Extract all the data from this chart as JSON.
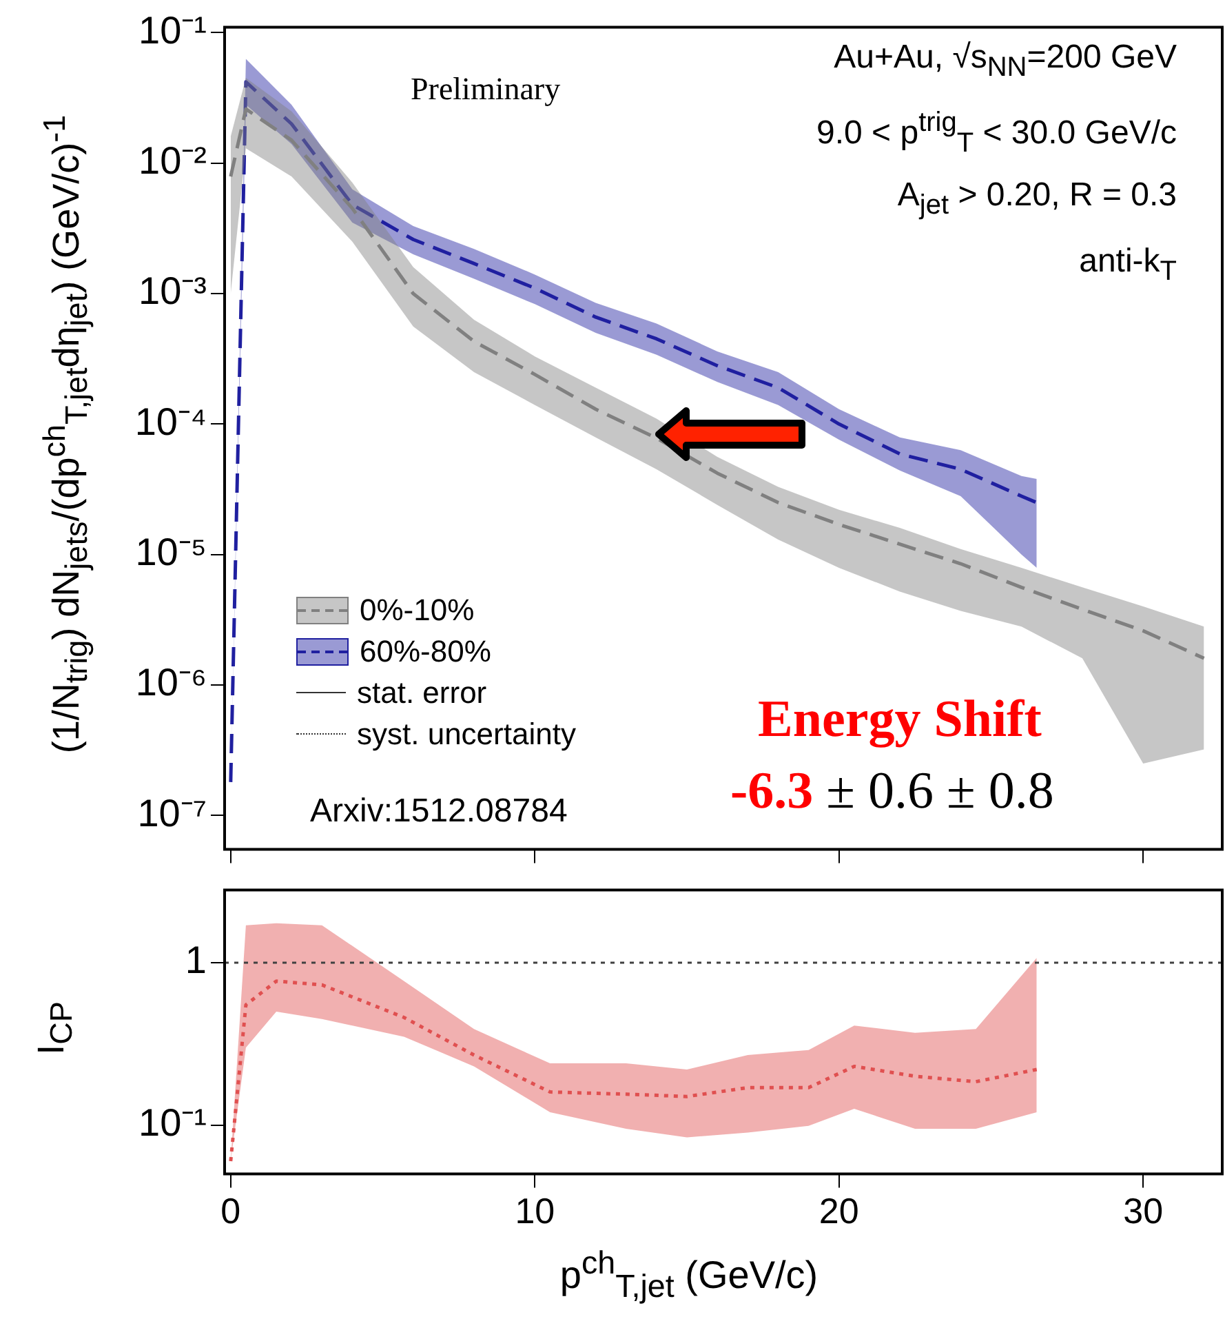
{
  "chart_data": [
    {
      "type": "line",
      "ylabel": "(1/N$_{trig}$) dN$_{jets}$/(dp$^{ch}$$_{T,jet}$dη$_{jet}$)  (GeV/c)$^{-1}$",
      "log": "y",
      "tick_labels": "y",
      "legend": "left",
      "xlim": [
        -0.2,
        32.6
      ],
      "xticks": [
        0,
        10,
        20,
        30
      ],
      "ylim": [
        5.5e-08,
        0.11
      ],
      "yticks": [
        {
          "value": 0.1,
          "label": "10⁻¹"
        },
        {
          "value": 0.01,
          "label": "10⁻²"
        },
        {
          "value": 0.001,
          "label": "10⁻³"
        },
        {
          "value": 0.0001,
          "label": "10⁻⁴"
        },
        {
          "value": 1e-05,
          "label": "10⁻⁵"
        },
        {
          "value": 1e-06,
          "label": "10⁻⁶"
        },
        {
          "value": 1e-07,
          "label": "10⁻⁷"
        }
      ],
      "series": [
        {
          "name": "0%-10%",
          "color": "#808080",
          "line_style": "dashed",
          "x": [
            0,
            0.5,
            2,
            4,
            6,
            8,
            10,
            12,
            14,
            16,
            18,
            20,
            22,
            24,
            26,
            28,
            30,
            32
          ],
          "values": [
            0.0079,
            0.026,
            0.015,
            0.0045,
            0.001,
            0.00043,
            0.00024,
            0.00013,
            7.8e-05,
            4.2e-05,
            2.5e-05,
            1.7e-05,
            1.2e-05,
            8.5e-06,
            5.6e-06,
            3.8e-06,
            2.6e-06,
            1.6e-06
          ],
          "upper": [
            0.016,
            0.045,
            0.025,
            0.0071,
            0.0016,
            0.00063,
            0.00033,
            0.00019,
            0.00011,
            5.6e-05,
            3.3e-05,
            2.2e-05,
            1.6e-05,
            1.1e-05,
            7.9e-06,
            5.6e-06,
            4e-06,
            2.8e-06
          ],
          "lower": [
            0.001,
            0.013,
            0.0079,
            0.0025,
            0.00056,
            0.00025,
            0.00014,
            7.9e-05,
            4.5e-05,
            2.4e-05,
            1.3e-05,
            7.9e-06,
            5.2e-06,
            3.7e-06,
            2.8e-06,
            1.6e-06,
            2.5e-07,
            3.2e-07
          ]
        },
        {
          "name": "60%-80%",
          "color": "#2020a0",
          "line_style": "dashed",
          "x": [
            0,
            0.5,
            2,
            4,
            6,
            8,
            10,
            12,
            14,
            16,
            18,
            20,
            22,
            24,
            26,
            26.5
          ],
          "values": [
            1.8e-07,
            0.042,
            0.02,
            0.0048,
            0.0026,
            0.0017,
            0.0011,
            0.00066,
            0.00045,
            0.00028,
            0.00019,
            0.0001,
            5.9e-05,
            4.5e-05,
            2.8e-05,
            2.5e-05
          ],
          "upper": [
            1.8e-07,
            0.063,
            0.028,
            0.0063,
            0.0033,
            0.0022,
            0.0014,
            0.00085,
            0.00059,
            0.00036,
            0.00025,
            0.00013,
            7.9e-05,
            6.3e-05,
            4e-05,
            3.8e-05
          ],
          "lower": [
            1.8e-07,
            0.028,
            0.014,
            0.0035,
            0.002,
            0.0013,
            0.00083,
            0.0005,
            0.00034,
            0.00021,
            0.00014,
            7.6e-05,
            4.4e-05,
            2.8e-05,
            1e-05,
            7.9e-06
          ]
        }
      ],
      "annotations": [
        "Preliminary",
        "Au+Au, √s$_{NN}$=200 GeV",
        "9.0 < p$^{trig}$$_{T}$ < 30.0 GeV/c",
        "A$_{jet}$ > 0.20, R = 0.3",
        "anti-k$_{T}$",
        "stat. error",
        "syst. uncertainty",
        "Arxiv:1512.08784",
        "Energy Shift",
        "-6.3",
        "± 0.6 ± 0.8"
      ]
    },
    {
      "type": "line",
      "ylabel": "I$_{CP}$",
      "xlabel": "p$^{ch}$$_{T,jet}$  (GeV/c)",
      "log": "y",
      "xlim": [
        -0.2,
        32.6
      ],
      "xticks": [
        0,
        10,
        20,
        30
      ],
      "ylim": [
        0.05,
        2.8
      ],
      "yticks": [
        1,
        {
          "value": 0.1,
          "label": "10⁻¹"
        }
      ],
      "series": [
        {
          "color": "#e05050",
          "line_style": "dotted",
          "x": [
            0,
            0.5,
            1.5,
            3,
            5.7,
            8,
            10.5,
            13,
            15,
            17,
            19,
            20.5,
            22.5,
            24.5,
            26.5
          ],
          "values": [
            0.06,
            0.55,
            0.77,
            0.73,
            0.46,
            0.27,
            0.16,
            0.155,
            0.15,
            0.17,
            0.17,
            0.23,
            0.2,
            0.185,
            0.22
          ],
          "upper": [
            0.06,
            1.7,
            1.75,
            1.7,
            0.77,
            0.39,
            0.24,
            0.24,
            0.22,
            0.27,
            0.29,
            0.41,
            0.37,
            0.39,
            1.07
          ],
          "lower": [
            0.06,
            0.3,
            0.5,
            0.45,
            0.35,
            0.23,
            0.12,
            0.095,
            0.084,
            0.09,
            0.099,
            0.126,
            0.095,
            0.095,
            0.12
          ]
        }
      ],
      "ref_lines": [
        {
          "axis": "y",
          "value": 1,
          "line_style": "dotted",
          "color": "#404040"
        }
      ]
    }
  ]
}
